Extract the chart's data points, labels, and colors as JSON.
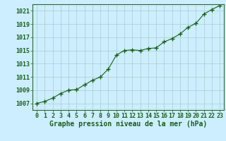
{
  "x": [
    0,
    1,
    2,
    3,
    4,
    5,
    6,
    7,
    8,
    9,
    10,
    11,
    12,
    13,
    14,
    15,
    16,
    17,
    18,
    19,
    20,
    21,
    22,
    23
  ],
  "y": [
    1007.0,
    1007.3,
    1007.8,
    1008.5,
    1009.0,
    1009.1,
    1009.8,
    1010.5,
    1011.0,
    1012.2,
    1014.3,
    1015.0,
    1015.1,
    1015.0,
    1015.3,
    1015.4,
    1016.3,
    1016.8,
    1017.5,
    1018.5,
    1019.1,
    1020.5,
    1021.2,
    1021.8
  ],
  "ylim": [
    1006,
    1022
  ],
  "yticks": [
    1007,
    1009,
    1011,
    1013,
    1015,
    1017,
    1019,
    1021
  ],
  "xticks": [
    0,
    1,
    2,
    3,
    4,
    5,
    6,
    7,
    8,
    9,
    10,
    11,
    12,
    13,
    14,
    15,
    16,
    17,
    18,
    19,
    20,
    21,
    22,
    23
  ],
  "line_color": "#1a5e1a",
  "marker": "+",
  "marker_size": 4,
  "bg_color": "#cceeff",
  "grid_color": "#aacccc",
  "title": "Graphe pression niveau de la mer (hPa)",
  "title_color": "#1a5e1a",
  "title_fontsize": 7.0,
  "tick_color": "#1a5e1a",
  "tick_fontsize": 6.0,
  "border_color": "#336633"
}
